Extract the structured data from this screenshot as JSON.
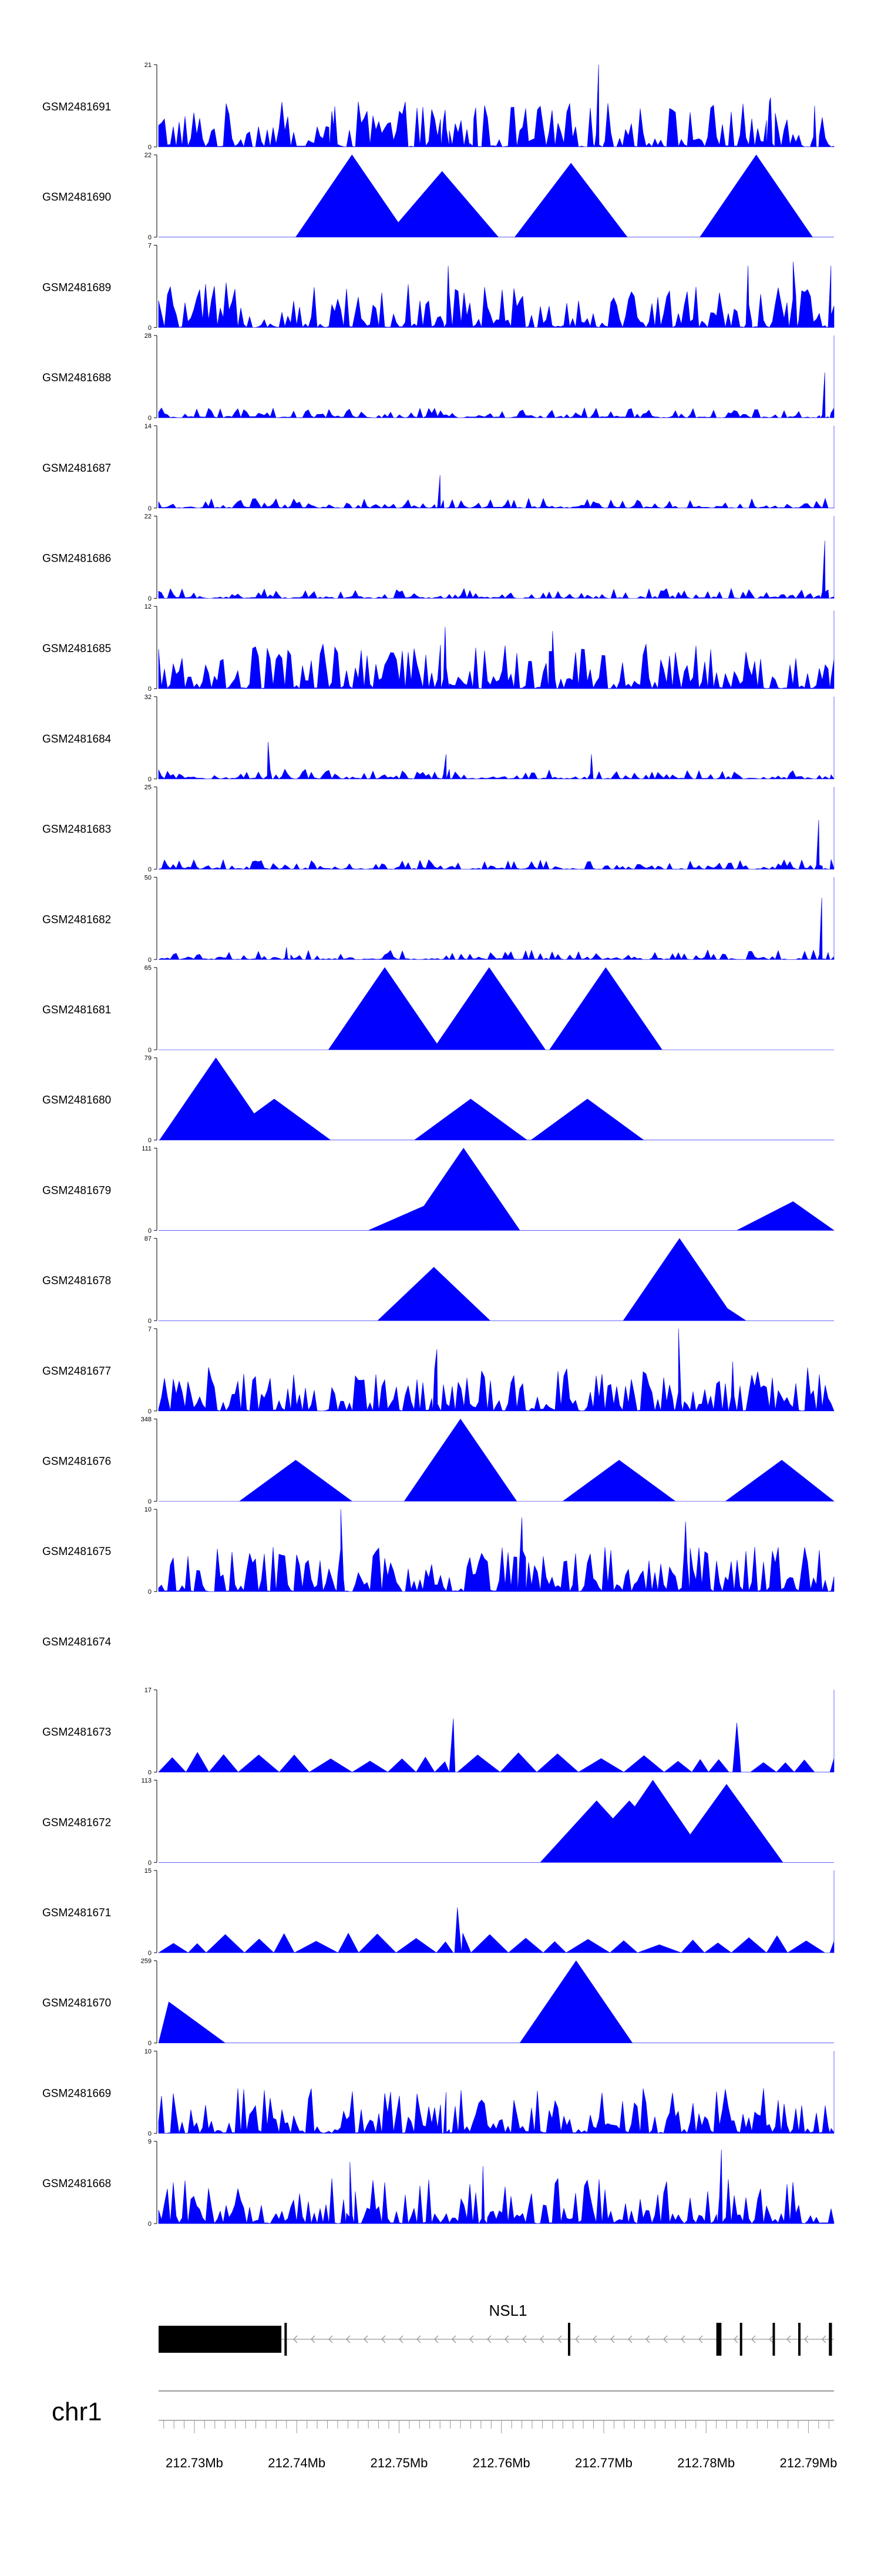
{
  "colors": {
    "track_fill": "#0000ff",
    "axis": "#000000",
    "gene": "#000000",
    "intron": "#999999",
    "ideogram_line": "#999999"
  },
  "chart_data": {
    "type": "area",
    "title": "",
    "xlabel": "",
    "ylabel": "",
    "chromosome": "chr1",
    "xlim": [
      212.7265,
      212.7925
    ],
    "x_tick_labels": [
      {
        "pos": 212.73,
        "label": "212.73Mb"
      },
      {
        "pos": 212.74,
        "label": "212.74Mb"
      },
      {
        "pos": 212.75,
        "label": "212.75Mb"
      },
      {
        "pos": 212.76,
        "label": "212.76Mb"
      },
      {
        "pos": 212.77,
        "label": "212.77Mb"
      },
      {
        "pos": 212.78,
        "label": "212.78Mb"
      },
      {
        "pos": 212.79,
        "label": "212.79Mb"
      }
    ],
    "tracks": [
      {
        "name": "GSM2481691",
        "ymax": 21,
        "ymin": 0,
        "style": "dense",
        "peaks": [
          [
            212.7436,
            0.25
          ],
          [
            212.7545,
            0.45
          ],
          [
            212.7573,
            0.35
          ],
          [
            212.7695,
            1.0
          ],
          [
            212.7863,
            0.6
          ],
          [
            212.7906,
            0.5
          ]
        ]
      },
      {
        "name": "GSM2481690",
        "ymax": 22,
        "ymin": 0,
        "style": "sparse",
        "peaks": [
          [
            212.7454,
            1.0
          ],
          [
            212.7849,
            1.0
          ],
          [
            212.7668,
            0.9
          ],
          [
            212.7542,
            0.8
          ]
        ]
      },
      {
        "name": "GSM2481689",
        "ymax": 7,
        "ymin": 0,
        "style": "dense",
        "peaks": [
          [
            212.7548,
            0.75
          ],
          [
            212.7841,
            0.75
          ],
          [
            212.7885,
            0.8
          ],
          [
            212.7922,
            0.75
          ]
        ]
      },
      {
        "name": "GSM2481688",
        "ymax": 28,
        "ymin": 0,
        "style": "dense_low",
        "peaks": [
          [
            212.7925,
            1.0
          ],
          [
            212.7916,
            0.55
          ]
        ]
      },
      {
        "name": "GSM2481687",
        "ymax": 14,
        "ymin": 0,
        "style": "dense_low",
        "peaks": [
          [
            212.7925,
            1.0
          ],
          [
            212.754,
            0.4
          ]
        ]
      },
      {
        "name": "GSM2481686",
        "ymax": 22,
        "ymin": 0,
        "style": "dense_low",
        "peaks": [
          [
            212.7925,
            1.0
          ],
          [
            212.7916,
            0.7
          ]
        ]
      },
      {
        "name": "GSM2481685",
        "ymax": 12,
        "ymin": 0,
        "style": "dense",
        "peaks": [
          [
            212.7925,
            0.95
          ],
          [
            212.7545,
            0.75
          ],
          [
            212.765,
            0.7
          ]
        ]
      },
      {
        "name": "GSM2481684",
        "ymax": 32,
        "ymin": 0,
        "style": "dense_low",
        "peaks": [
          [
            212.7925,
            1.0
          ],
          [
            212.7372,
            0.45
          ],
          [
            212.7546,
            0.3
          ],
          [
            212.7688,
            0.3
          ]
        ]
      },
      {
        "name": "GSM2481683",
        "ymax": 25,
        "ymin": 0,
        "style": "dense_low",
        "peaks": [
          [
            212.7925,
            1.0
          ],
          [
            212.791,
            0.6
          ]
        ]
      },
      {
        "name": "GSM2481682",
        "ymax": 50,
        "ymin": 0,
        "style": "dense_low",
        "peaks": [
          [
            212.7925,
            1.0
          ],
          [
            212.7913,
            0.75
          ],
          [
            212.739,
            0.15
          ]
        ]
      },
      {
        "name": "GSM2481681",
        "ymax": 65,
        "ymin": 0,
        "style": "sparse",
        "peaks": [
          [
            212.7486,
            1.0
          ],
          [
            212.7588,
            1.0
          ],
          [
            212.7702,
            1.0
          ]
        ]
      },
      {
        "name": "GSM2481680",
        "ymax": 79,
        "ymin": 0,
        "style": "sparse",
        "peaks": [
          [
            212.7321,
            1.0
          ],
          [
            212.7378,
            0.5
          ],
          [
            212.757,
            0.5
          ],
          [
            212.7684,
            0.5
          ]
        ]
      },
      {
        "name": "GSM2481679",
        "ymax": 111,
        "ymin": 0,
        "style": "sparse",
        "peaks": [
          [
            212.7563,
            1.0
          ],
          [
            212.7525,
            0.3
          ],
          [
            212.7885,
            0.35
          ]
        ]
      },
      {
        "name": "GSM2481678",
        "ymax": 87,
        "ymin": 0,
        "style": "sparse",
        "peaks": [
          [
            212.7774,
            1.0
          ],
          [
            212.7534,
            0.65
          ],
          [
            212.7784,
            0.45
          ]
        ]
      },
      {
        "name": "GSM2481677",
        "ymax": 7,
        "ymin": 0,
        "style": "dense",
        "peaks": [
          [
            212.7773,
            1.0
          ],
          [
            212.7537,
            0.75
          ],
          [
            212.7826,
            0.6
          ]
        ]
      },
      {
        "name": "GSM2481676",
        "ymax": 348,
        "ymin": 0,
        "style": "sparse",
        "peaks": [
          [
            212.7399,
            0.5
          ],
          [
            212.756,
            1.0
          ],
          [
            212.7715,
            0.5
          ],
          [
            212.7874,
            0.5
          ]
        ]
      },
      {
        "name": "GSM2481675",
        "ymax": 10,
        "ymin": 0,
        "style": "dense",
        "peaks": [
          [
            212.7443,
            1.0
          ],
          [
            212.762,
            0.9
          ],
          [
            212.778,
            0.85
          ]
        ]
      },
      {
        "name": "GSM2481674",
        "ymax": null,
        "ymin": null,
        "style": "empty",
        "peaks": []
      },
      {
        "name": "GSM2481673",
        "ymax": 17,
        "ymin": 0,
        "style": "sparse_dense",
        "peaks": [
          [
            212.7925,
            1.0
          ],
          [
            212.7553,
            0.65
          ],
          [
            212.783,
            0.6
          ]
        ]
      },
      {
        "name": "GSM2481672",
        "ymax": 113,
        "ymin": 0,
        "style": "sparse",
        "peaks": [
          [
            212.7748,
            1.0
          ],
          [
            212.782,
            0.95
          ],
          [
            212.7725,
            0.75
          ],
          [
            212.7693,
            0.75
          ]
        ]
      },
      {
        "name": "GSM2481671",
        "ymax": 15,
        "ymin": 0,
        "style": "sparse_dense",
        "peaks": [
          [
            212.7925,
            1.0
          ],
          [
            212.7557,
            0.55
          ]
        ]
      },
      {
        "name": "GSM2481670",
        "ymax": 259,
        "ymin": 0,
        "style": "sparse",
        "peaks": [
          [
            212.7275,
            0.5
          ],
          [
            212.7673,
            1.0
          ],
          [
            212.7478,
            0.0
          ]
        ]
      },
      {
        "name": "GSM2481669",
        "ymax": 10,
        "ymin": 0,
        "style": "dense",
        "peaks": [
          [
            212.7925,
            1.0
          ],
          [
            212.7546,
            0.5
          ]
        ]
      },
      {
        "name": "GSM2481668",
        "ymax": 9,
        "ymin": 0,
        "style": "dense",
        "peaks": [
          [
            212.7815,
            0.9
          ],
          [
            212.7452,
            0.75
          ],
          [
            212.7582,
            0.7
          ]
        ]
      }
    ],
    "gene": {
      "name": "NSL1",
      "strand": "-",
      "exons": [
        [
          212.7265,
          212.7385
        ],
        [
          212.7388,
          212.739
        ],
        [
          212.7665,
          212.7667
        ],
        [
          212.781,
          212.7815
        ],
        [
          212.7833,
          212.7835
        ],
        [
          212.7865,
          212.7867
        ],
        [
          212.789,
          212.7892
        ],
        [
          212.792,
          212.7923
        ]
      ]
    }
  }
}
